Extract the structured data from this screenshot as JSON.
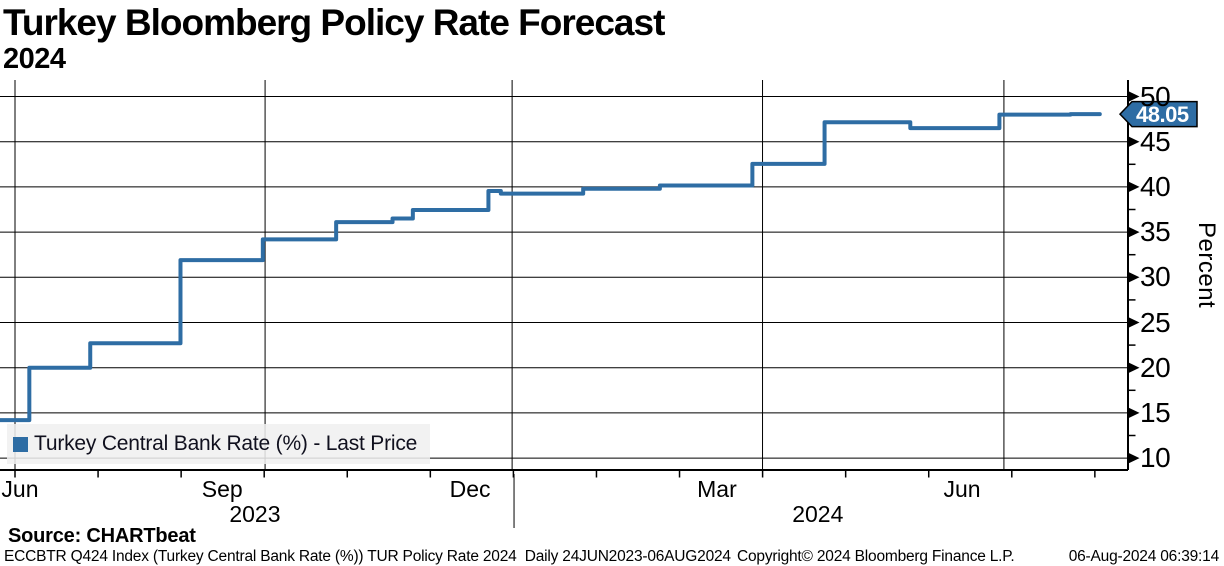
{
  "header": {
    "title": "Turkey Bloomberg Policy Rate Forecast",
    "subtitle": "2024"
  },
  "legend": {
    "label": "Turkey Central Bank Rate (%) - Last Price",
    "marker_color": "#2e6da4",
    "position": "bottom-left"
  },
  "source_line": "Source: CHARTbeat",
  "footer": {
    "left": "ECCBTR Q424 Index (Turkey Central Bank Rate (%)) TUR Policy Rate 2024  Daily 24JUN2023-06AUG2024",
    "center": "Copyright© 2024 Bloomberg Finance L.P.",
    "right": "06-Aug-2024 06:39:14"
  },
  "chart_data": {
    "type": "line",
    "step": true,
    "title": "Turkey Bloomberg Policy Rate Forecast 2024",
    "series_name": "Turkey Central Bank Rate (%) - Last Price",
    "line_color": "#2e6da4",
    "grid": true,
    "ylabel": "Percent",
    "y_axis": {
      "side": "right",
      "min": 10,
      "max": 50,
      "major_step": 5,
      "minor_step": 2.5,
      "ticks": [
        50,
        45,
        40,
        35,
        30,
        25,
        20,
        15,
        10
      ]
    },
    "x_axis": {
      "start": "2023-06-24",
      "end": "2024-08-06",
      "month_labels": [
        {
          "label": "Jun",
          "xf": 0.0177
        },
        {
          "label": "Sep",
          "xf": 0.197
        },
        {
          "label": "Dec",
          "xf": 0.4167
        },
        {
          "label": "Mar",
          "xf": 0.6356
        },
        {
          "label": "Jun",
          "xf": 0.8529
        }
      ],
      "year_labels": [
        {
          "label": "2023",
          "xf": 0.226
        },
        {
          "label": "2024",
          "xf": 0.725
        }
      ],
      "gridlines_xf": [
        0.0133,
        0.235,
        0.454,
        0.676,
        0.89
      ],
      "month_tick_first_xf": 0.0133,
      "month_tick_step_xf": 0.07364,
      "month_tick_count": 14,
      "year_divider_xf": 0.4557
    },
    "points": [
      {
        "date": "2023-06-24",
        "xf": 0.0,
        "value": 14.2
      },
      {
        "date": "2023-07-05",
        "xf": 0.026,
        "value": 20.0
      },
      {
        "date": "2023-07-27",
        "xf": 0.08,
        "value": 22.7
      },
      {
        "date": "2023-08-29",
        "xf": 0.16,
        "value": 31.9
      },
      {
        "date": "2023-09-28",
        "xf": 0.233,
        "value": 34.2
      },
      {
        "date": "2023-10-25",
        "xf": 0.298,
        "value": 36.1
      },
      {
        "date": "2023-11-14",
        "xf": 0.348,
        "value": 36.5
      },
      {
        "date": "2023-11-22",
        "xf": 0.366,
        "value": 37.45
      },
      {
        "date": "2023-12-19",
        "xf": 0.433,
        "value": 39.55
      },
      {
        "date": "2023-12-24",
        "xf": 0.444,
        "value": 39.25
      },
      {
        "date": "2024-01-23",
        "xf": 0.517,
        "value": 39.8
      },
      {
        "date": "2024-02-20",
        "xf": 0.585,
        "value": 40.15
      },
      {
        "date": "2024-03-25",
        "xf": 0.667,
        "value": 42.55
      },
      {
        "date": "2024-04-21",
        "xf": 0.731,
        "value": 47.15
      },
      {
        "date": "2024-05-22",
        "xf": 0.807,
        "value": 46.5
      },
      {
        "date": "2024-06-23",
        "xf": 0.886,
        "value": 48.0
      },
      {
        "date": "2024-07-19",
        "xf": 0.949,
        "value": 48.05
      }
    ],
    "end_xf": 0.975,
    "last_price": 48.05,
    "last_price_label": "48.05"
  }
}
